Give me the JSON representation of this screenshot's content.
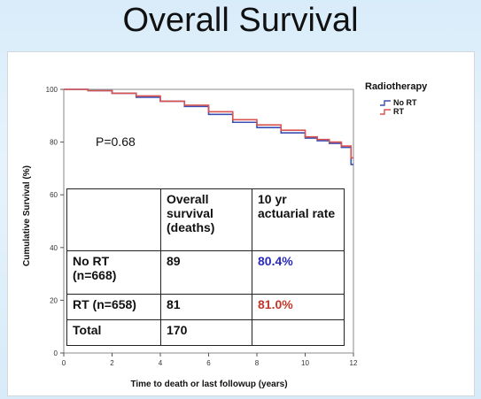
{
  "slide": {
    "title": "Overall Survival"
  },
  "annotations": {
    "p_value": "P=0.68"
  },
  "chart_data": {
    "type": "line",
    "xlabel": "Time to death or last followup (years)",
    "ylabel": "Cumulative Survival (%)",
    "xlim": [
      0,
      12
    ],
    "ylim": [
      0,
      100
    ],
    "xticks": [
      0,
      2,
      4,
      6,
      8,
      10,
      12
    ],
    "yticks": [
      0,
      20,
      40,
      60,
      80,
      100
    ],
    "legend": {
      "title": "Radiotherapy",
      "position": "top-right"
    },
    "series": [
      {
        "name": "No RT",
        "color": "#3a4fb5",
        "x": [
          0,
          1,
          2,
          3,
          4,
          5,
          6,
          7,
          8,
          9,
          10,
          10.5,
          11,
          11.5,
          11.9,
          12
        ],
        "y": [
          100,
          99.5,
          98.5,
          97,
          95.5,
          93.5,
          90.5,
          87.5,
          85.5,
          83.5,
          81.5,
          80.5,
          79.5,
          78,
          71.5,
          71.5
        ]
      },
      {
        "name": "RT",
        "color": "#d9534f",
        "x": [
          0,
          1,
          2,
          3,
          4,
          5,
          6,
          7,
          8,
          9,
          10,
          10.5,
          11,
          11.5,
          11.9,
          12
        ],
        "y": [
          100,
          99.5,
          98.5,
          97.5,
          95.5,
          94,
          91.5,
          88.5,
          86.5,
          84.5,
          82,
          81,
          80,
          78.5,
          74,
          74
        ]
      }
    ]
  },
  "table": {
    "header": [
      "",
      "Overall survival (deaths)",
      "10 yr actuarial rate"
    ],
    "rows": [
      {
        "label": "No RT (n=668)",
        "deaths": "89",
        "rate": "80.4%"
      },
      {
        "label": "RT (n=658)",
        "deaths": "81",
        "rate": "81.0%"
      },
      {
        "label": "Total",
        "deaths": "170",
        "rate": ""
      }
    ]
  }
}
